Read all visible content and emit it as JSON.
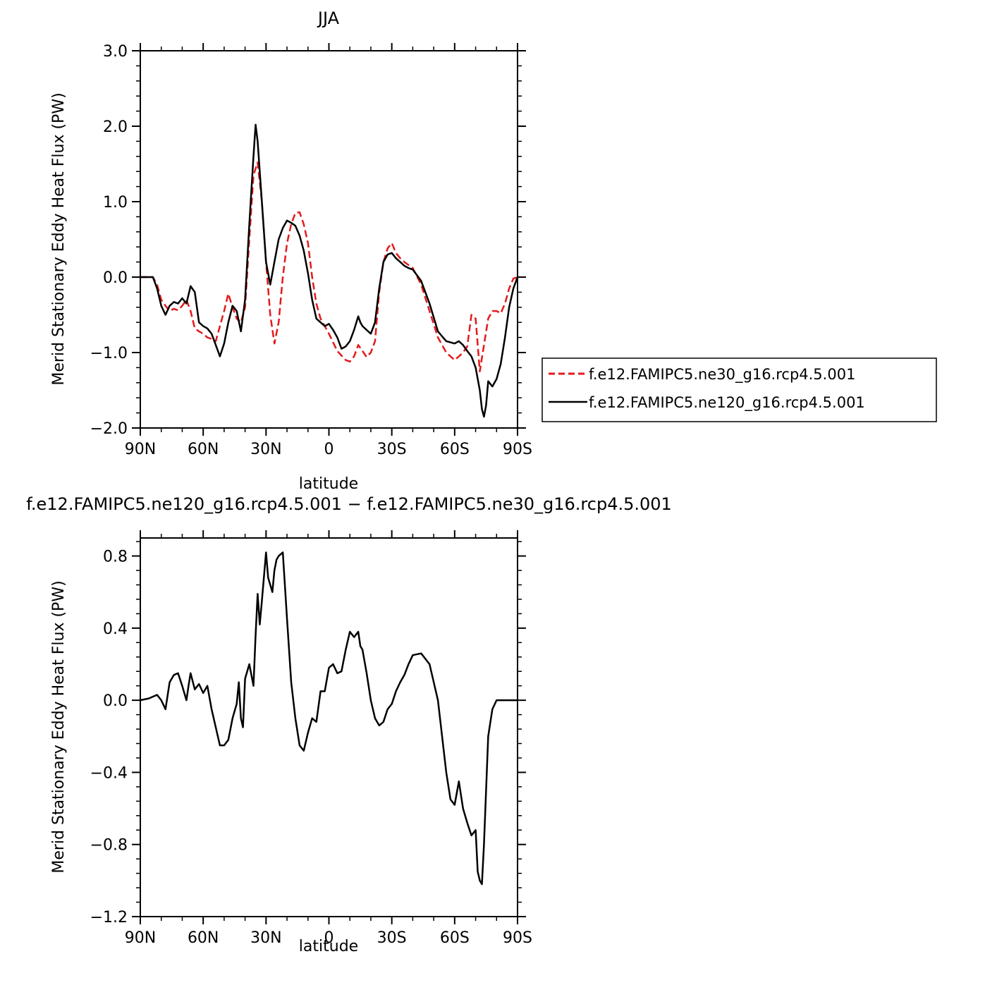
{
  "chart_data": [
    {
      "type": "line",
      "title": "JJA",
      "xlabel": "latitude",
      "ylabel": "Merid Stationary Eddy Heat Flux (PW)",
      "x_ticks": [
        {
          "value": -90,
          "label": "90N"
        },
        {
          "value": -60,
          "label": "60N"
        },
        {
          "value": -30,
          "label": "30N"
        },
        {
          "value": 0,
          "label": "0"
        },
        {
          "value": 30,
          "label": "30S"
        },
        {
          "value": 60,
          "label": "60S"
        },
        {
          "value": 90,
          "label": "90S"
        }
      ],
      "y_ticks": [
        {
          "value": 3.0,
          "label": "3.0"
        },
        {
          "value": 2.0,
          "label": "2.0"
        },
        {
          "value": 1.0,
          "label": "1.0"
        },
        {
          "value": 0.0,
          "label": "0.0"
        },
        {
          "value": -1.0,
          "label": "−1.0"
        },
        {
          "value": -2.0,
          "label": "−2.0"
        }
      ],
      "xlim": [
        -90,
        90
      ],
      "ylim": [
        -2.0,
        3.0
      ],
      "legend_position": "right",
      "series": [
        {
          "name": "f.e12.FAMIPC5.ne30_g16.rcp4.5.001",
          "color": "#e31a1c",
          "dash": "dashed",
          "x": [
            -90,
            -84,
            -82,
            -80,
            -78,
            -76,
            -74,
            -72,
            -70,
            -68,
            -66,
            -64,
            -62,
            -60,
            -58,
            -56,
            -54,
            -52,
            -50,
            -48,
            -46,
            -44,
            -42,
            -40,
            -38,
            -36,
            -34,
            -32,
            -30,
            -28,
            -26,
            -24,
            -22,
            -20,
            -18,
            -16,
            -14,
            -12,
            -10,
            -8,
            -6,
            -4,
            -2,
            0,
            4,
            8,
            10,
            12,
            14,
            16,
            18,
            20,
            22,
            24,
            26,
            28,
            30,
            32,
            34,
            36,
            40,
            44,
            48,
            52,
            56,
            60,
            62,
            64,
            66,
            68,
            70,
            72,
            74,
            76,
            78,
            80,
            82,
            84,
            86,
            88,
            90
          ],
          "y": [
            0.0,
            0.0,
            -0.1,
            -0.3,
            -0.38,
            -0.45,
            -0.42,
            -0.44,
            -0.38,
            -0.3,
            -0.45,
            -0.68,
            -0.72,
            -0.75,
            -0.8,
            -0.82,
            -0.85,
            -0.65,
            -0.45,
            -0.22,
            -0.4,
            -0.55,
            -0.6,
            -0.4,
            0.5,
            1.35,
            1.52,
            1.0,
            0.2,
            -0.5,
            -0.88,
            -0.6,
            0.0,
            0.45,
            0.7,
            0.85,
            0.86,
            0.7,
            0.45,
            0.0,
            -0.35,
            -0.55,
            -0.65,
            -0.75,
            -0.98,
            -1.1,
            -1.12,
            -1.05,
            -0.9,
            -0.98,
            -1.06,
            -1.0,
            -0.85,
            -0.2,
            0.2,
            0.38,
            0.45,
            0.32,
            0.25,
            0.2,
            0.12,
            -0.1,
            -0.45,
            -0.8,
            -1.0,
            -1.1,
            -1.05,
            -1.0,
            -0.92,
            -0.5,
            -0.55,
            -1.25,
            -0.9,
            -0.55,
            -0.45,
            -0.45,
            -0.48,
            -0.35,
            -0.15,
            -0.02,
            0.0
          ]
        },
        {
          "name": "f.e12.FAMIPC5.ne120_g16.rcp4.5.001",
          "color": "#000000",
          "dash": "solid",
          "x": [
            -90,
            -84,
            -82,
            -80,
            -78,
            -76,
            -74,
            -72,
            -70,
            -68,
            -66,
            -64,
            -62,
            -60,
            -58,
            -56,
            -54,
            -52,
            -50,
            -48,
            -46,
            -44,
            -42,
            -40,
            -38,
            -36,
            -35,
            -34,
            -32,
            -30,
            -28,
            -26,
            -24,
            -22,
            -20,
            -18,
            -16,
            -14,
            -12,
            -10,
            -8,
            -6,
            -4,
            -2,
            0,
            2,
            4,
            6,
            8,
            10,
            12,
            14,
            15,
            16,
            18,
            20,
            22,
            24,
            26,
            28,
            30,
            32,
            34,
            36,
            38,
            40,
            44,
            48,
            52,
            56,
            60,
            62,
            64,
            66,
            68,
            70,
            72,
            73,
            74,
            75,
            76,
            78,
            80,
            82,
            84,
            86,
            88,
            90
          ],
          "y": [
            0.0,
            0.0,
            -0.15,
            -0.38,
            -0.5,
            -0.38,
            -0.33,
            -0.35,
            -0.28,
            -0.35,
            -0.12,
            -0.2,
            -0.6,
            -0.65,
            -0.68,
            -0.75,
            -0.9,
            -1.05,
            -0.88,
            -0.6,
            -0.38,
            -0.45,
            -0.72,
            -0.3,
            0.7,
            1.6,
            2.02,
            1.8,
            1.0,
            0.2,
            -0.1,
            0.2,
            0.5,
            0.65,
            0.75,
            0.72,
            0.68,
            0.55,
            0.35,
            0.05,
            -0.3,
            -0.55,
            -0.6,
            -0.65,
            -0.62,
            -0.7,
            -0.8,
            -0.95,
            -0.92,
            -0.85,
            -0.7,
            -0.52,
            -0.6,
            -0.65,
            -0.7,
            -0.75,
            -0.6,
            -0.15,
            0.2,
            0.3,
            0.32,
            0.25,
            0.2,
            0.15,
            0.12,
            0.1,
            -0.05,
            -0.35,
            -0.72,
            -0.85,
            -0.88,
            -0.85,
            -0.9,
            -0.98,
            -1.05,
            -1.2,
            -1.5,
            -1.75,
            -1.85,
            -1.7,
            -1.38,
            -1.45,
            -1.35,
            -1.15,
            -0.8,
            -0.4,
            -0.15,
            0.0
          ]
        }
      ]
    },
    {
      "type": "line",
      "title": "f.e12.FAMIPC5.ne120_g16.rcp4.5.001 − f.e12.FAMIPC5.ne30_g16.rcp4.5.001",
      "xlabel": "latitude",
      "ylabel": "Merid Stationary Eddy Heat Flux (PW)",
      "x_ticks": [
        {
          "value": -90,
          "label": "90N"
        },
        {
          "value": -60,
          "label": "60N"
        },
        {
          "value": -30,
          "label": "30N"
        },
        {
          "value": 0,
          "label": "0"
        },
        {
          "value": 30,
          "label": "30S"
        },
        {
          "value": 60,
          "label": "60S"
        },
        {
          "value": 90,
          "label": "90S"
        }
      ],
      "y_ticks": [
        {
          "value": 0.8,
          "label": "0.8"
        },
        {
          "value": 0.4,
          "label": "0.4"
        },
        {
          "value": 0.0,
          "label": "0.0"
        },
        {
          "value": -0.4,
          "label": "−0.4"
        },
        {
          "value": -0.8,
          "label": "−0.8"
        },
        {
          "value": -1.2,
          "label": "−1.2"
        }
      ],
      "xlim": [
        -90,
        90
      ],
      "ylim": [
        -1.2,
        0.9
      ],
      "series": [
        {
          "color": "#000000",
          "dash": "solid",
          "x": [
            -90,
            -86,
            -82,
            -80,
            -78,
            -76,
            -74,
            -72,
            -70,
            -68,
            -67,
            -66,
            -64,
            -62,
            -60,
            -58,
            -56,
            -54,
            -52,
            -50,
            -48,
            -46,
            -44,
            -43,
            -42,
            -41,
            -40,
            -38,
            -36,
            -35,
            -34,
            -33,
            -32,
            -30,
            -29,
            -28,
            -27,
            -26,
            -25,
            -24,
            -22,
            -20,
            -18,
            -16,
            -14,
            -12,
            -10,
            -8,
            -6,
            -4,
            -2,
            0,
            2,
            4,
            6,
            8,
            10,
            12,
            14,
            15,
            16,
            18,
            20,
            22,
            24,
            26,
            28,
            30,
            32,
            34,
            36,
            38,
            40,
            44,
            48,
            52,
            56,
            58,
            60,
            62,
            64,
            66,
            68,
            70,
            71,
            72,
            73,
            74,
            75,
            76,
            78,
            80,
            82,
            84,
            86,
            88,
            90
          ],
          "y": [
            0.0,
            0.01,
            0.03,
            0.0,
            -0.05,
            0.1,
            0.14,
            0.15,
            0.08,
            0.0,
            0.08,
            0.15,
            0.06,
            0.09,
            0.04,
            0.08,
            -0.05,
            -0.15,
            -0.25,
            -0.25,
            -0.22,
            -0.1,
            -0.02,
            0.1,
            -0.1,
            -0.15,
            0.12,
            0.2,
            0.08,
            0.36,
            0.59,
            0.42,
            0.55,
            0.82,
            0.68,
            0.64,
            0.6,
            0.72,
            0.78,
            0.8,
            0.82,
            0.45,
            0.1,
            -0.1,
            -0.25,
            -0.28,
            -0.18,
            -0.1,
            -0.12,
            0.05,
            0.05,
            0.18,
            0.2,
            0.15,
            0.16,
            0.28,
            0.38,
            0.35,
            0.38,
            0.3,
            0.28,
            0.15,
            0.0,
            -0.1,
            -0.14,
            -0.12,
            -0.05,
            -0.02,
            0.05,
            0.1,
            0.14,
            0.2,
            0.25,
            0.26,
            0.2,
            0.0,
            -0.4,
            -0.55,
            -0.58,
            -0.45,
            -0.6,
            -0.68,
            -0.75,
            -0.72,
            -0.95,
            -1.0,
            -1.02,
            -0.8,
            -0.5,
            -0.2,
            -0.05,
            0.0,
            0.0,
            0.0,
            0.0,
            0.0,
            0.0
          ]
        }
      ]
    }
  ]
}
